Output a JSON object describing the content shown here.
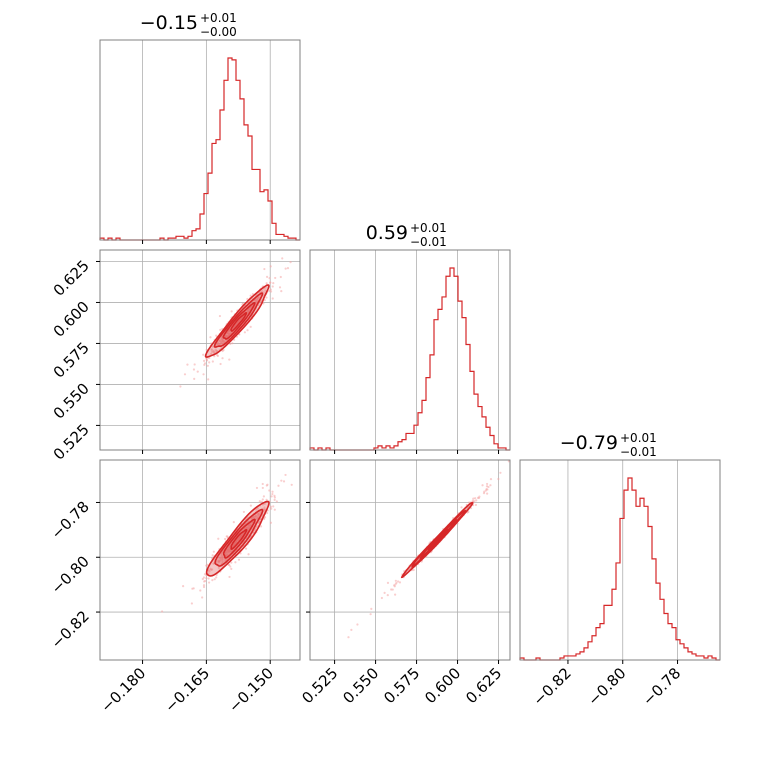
{
  "chart_data": {
    "type": "corner",
    "color": "#d62728",
    "parameters": [
      {
        "title": {
          "value": "−0.15",
          "plus": "+0.01",
          "minus": "−0.00"
        },
        "range": [
          -0.19,
          -0.143
        ],
        "ticks": [
          -0.18,
          -0.165,
          -0.15
        ],
        "tick_labels": [
          "−0.180",
          "−0.165",
          "−0.150"
        ],
        "histogram": {
          "edges_start": -0.19,
          "bin_width": 0.00094,
          "counts": [
            1,
            0,
            1,
            0,
            1,
            0,
            0,
            0,
            0,
            0,
            0,
            0,
            0,
            0,
            0,
            1,
            0,
            1,
            1,
            2,
            2,
            1,
            2,
            5,
            6,
            14,
            25,
            36,
            52,
            54,
            70,
            86,
            98,
            97,
            86,
            76,
            62,
            56,
            38,
            38,
            26,
            27,
            21,
            9,
            3,
            3,
            2,
            1,
            1,
            0
          ]
        }
      },
      {
        "title": {
          "value": "0.59",
          "plus": "+0.01",
          "minus": "−0.01"
        },
        "range": [
          0.51,
          0.632
        ],
        "ticks": [
          0.525,
          0.55,
          0.575,
          0.6,
          0.625
        ],
        "tick_labels": [
          "0.525",
          "0.550",
          "0.575",
          "0.600",
          "0.625"
        ],
        "histogram": {
          "edges_start": 0.51,
          "bin_width": 0.00244,
          "counts": [
            1,
            0,
            1,
            0,
            1,
            0,
            0,
            0,
            0,
            0,
            0,
            0,
            0,
            0,
            0,
            0,
            1,
            2,
            1,
            2,
            1,
            2,
            4,
            5,
            8,
            8,
            12,
            18,
            24,
            35,
            46,
            63,
            68,
            74,
            84,
            88,
            84,
            72,
            64,
            51,
            38,
            27,
            21,
            16,
            11,
            7,
            3,
            1,
            1,
            0
          ]
        }
      },
      {
        "title": {
          "value": "−0.79",
          "plus": "+0.01",
          "minus": "−0.01"
        },
        "range": [
          -0.8375,
          -0.7645
        ],
        "ticks": [
          -0.82,
          -0.8,
          -0.78
        ],
        "tick_labels": [
          "−0.82",
          "−0.80",
          "−0.78"
        ],
        "histogram": {
          "edges_start": -0.8375,
          "bin_width": 0.00146,
          "counts": [
            1,
            0,
            0,
            0,
            1,
            0,
            0,
            0,
            0,
            0,
            1,
            2,
            2,
            2,
            3,
            4,
            6,
            9,
            12,
            16,
            18,
            27,
            27,
            35,
            48,
            70,
            84,
            90,
            84,
            76,
            80,
            76,
            66,
            50,
            38,
            30,
            23,
            18,
            16,
            10,
            8,
            6,
            4,
            3,
            2,
            2,
            1,
            2,
            1,
            0
          ]
        }
      }
    ],
    "pairs": [
      {
        "x": 0,
        "y": 1,
        "center": [
          -0.1575,
          0.588
        ],
        "sigma": [
          0.0036,
          0.0108
        ],
        "rho": 0.95
      },
      {
        "x": 0,
        "y": 2,
        "center": [
          -0.1575,
          -0.7935
        ],
        "sigma": [
          0.0036,
          0.0068
        ],
        "rho": 0.93
      },
      {
        "x": 1,
        "y": 2,
        "center": [
          0.588,
          -0.7935
        ],
        "sigma": [
          0.0108,
          0.0068
        ],
        "rho": 0.995
      }
    ]
  }
}
